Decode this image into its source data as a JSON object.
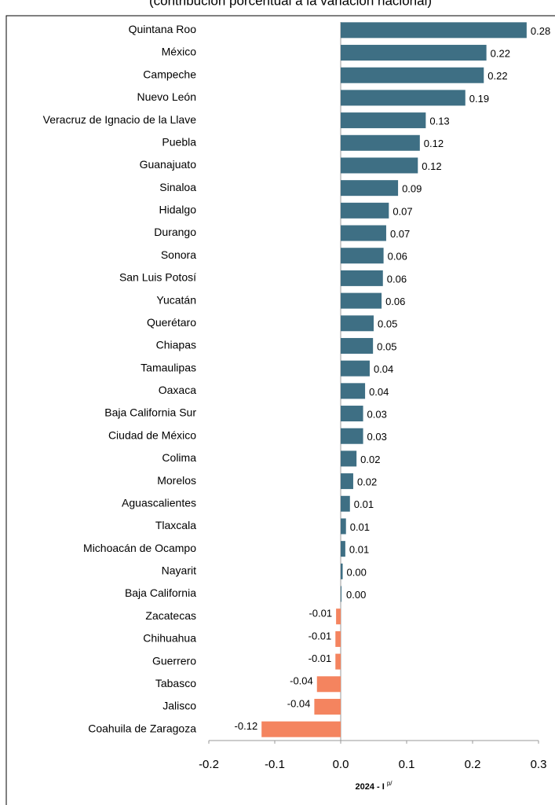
{
  "chart_data": {
    "type": "barh",
    "subtitle": "(contribución porcentual a la variación nacional)",
    "xlabel": "2024 - I",
    "xlabel_sup": "p/",
    "categories": [
      "Quintana Roo",
      "México",
      "Campeche",
      "Nuevo León",
      "Veracruz de Ignacio de la Llave",
      "Puebla",
      "Guanajuato",
      "Sinaloa",
      "Hidalgo",
      "Durango",
      "Sonora",
      "San Luis Potosí",
      "Yucatán",
      "Querétaro",
      "Chiapas",
      "Tamaulipas",
      "Oaxaca",
      "Baja California Sur",
      "Ciudad de México",
      "Colima",
      "Morelos",
      "Aguascalientes",
      "Tlaxcala",
      "Michoacán de Ocampo",
      "Nayarit",
      "Baja California",
      "Zacatecas",
      "Chihuahua",
      "Guerrero",
      "Tabasco",
      "Jalisco",
      "Coahuila de Zaragoza"
    ],
    "values": [
      0.282,
      0.221,
      0.217,
      0.189,
      0.129,
      0.12,
      0.117,
      0.087,
      0.073,
      0.069,
      0.065,
      0.064,
      0.062,
      0.05,
      0.049,
      0.044,
      0.037,
      0.034,
      0.034,
      0.024,
      0.019,
      0.014,
      0.008,
      0.007,
      0.003,
      0.001,
      -0.007,
      -0.008,
      -0.008,
      -0.036,
      -0.04,
      -0.12
    ],
    "value_labels": [
      "0.28",
      "0.22",
      "0.22",
      "0.19",
      "0.13",
      "0.12",
      "0.12",
      "0.09",
      "0.07",
      "0.07",
      "0.06",
      "0.06",
      "0.06",
      "0.05",
      "0.05",
      "0.04",
      "0.04",
      "0.03",
      "0.03",
      "0.02",
      "0.02",
      "0.01",
      "0.01",
      "0.01",
      "0.00",
      "0.00",
      "-0.01",
      "-0.01",
      "-0.01",
      "-0.04",
      "-0.04",
      "-0.12"
    ],
    "positive_color": "#3e6f84",
    "negative_color": "#f4845f",
    "xlim": [
      -0.2,
      0.3
    ],
    "xticks": [
      -0.2,
      -0.1,
      {
        "value": 0,
        "label": "0.0"
      },
      0.1,
      0.2,
      0.3
    ]
  }
}
